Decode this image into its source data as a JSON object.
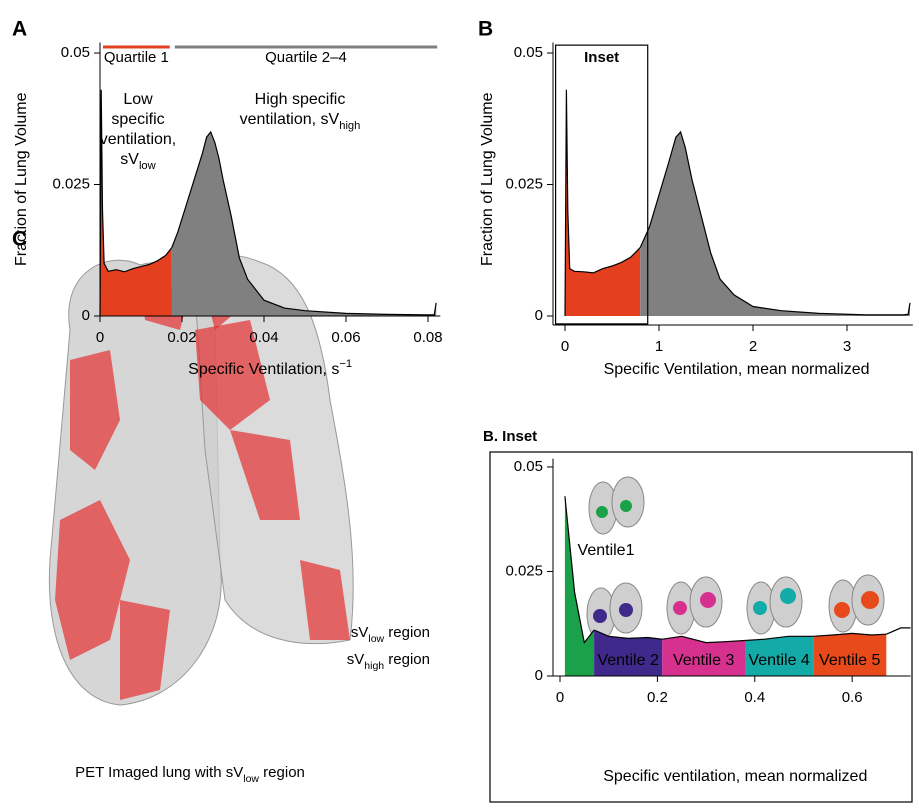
{
  "chart_data": [
    {
      "type": "area",
      "panel": "A",
      "y_label": "Fraction of Lung Volume",
      "x_label": {
        "text": "Specific Ventilation, s",
        "sup": "−1"
      },
      "xlim": [
        0,
        0.083
      ],
      "ylim": [
        0,
        0.052
      ],
      "xticks": [
        0,
        0.02,
        0.04,
        0.06,
        0.08
      ],
      "yticks": [
        0,
        0.025,
        0.05
      ],
      "series": [
        {
          "name": "Quartile 1",
          "color": "#e4401f",
          "x": [
            0,
            0.0003,
            0.0006,
            0.001,
            0.002,
            0.004,
            0.006,
            0.008,
            0.01,
            0.012,
            0.014,
            0.016,
            0.0175
          ],
          "values": [
            0,
            0.043,
            0.02,
            0.01,
            0.0085,
            0.0088,
            0.0084,
            0.009,
            0.0094,
            0.0098,
            0.0105,
            0.0115,
            0.013
          ]
        },
        {
          "name": "Quartile 2–4",
          "color": "#808080",
          "x": [
            0.0175,
            0.019,
            0.021,
            0.023,
            0.025,
            0.026,
            0.027,
            0.028,
            0.029,
            0.03,
            0.032,
            0.034,
            0.036,
            0.038,
            0.04,
            0.045,
            0.05,
            0.06,
            0.07,
            0.08,
            0.0815,
            0.082
          ],
          "values": [
            0.013,
            0.016,
            0.021,
            0.026,
            0.031,
            0.034,
            0.035,
            0.033,
            0.03,
            0.026,
            0.019,
            0.011,
            0.007,
            0.005,
            0.003,
            0.0015,
            0.001,
            0.0005,
            0.0003,
            0.0002,
            0.0002,
            0.0025
          ]
        }
      ],
      "annotations": [
        {
          "lines": [
            "Low",
            "specific",
            "ventilation,"
          ],
          "last": "sV",
          "sub": "low",
          "color": "#e4401f"
        },
        {
          "lines": [
            "High specific"
          ],
          "last": "ventilation, sV",
          "sub": "high",
          "color": "#8c8c8c"
        }
      ]
    },
    {
      "type": "area",
      "panel": "B",
      "y_label": "Fraction of Lung Volume",
      "x_label": {
        "text": "Specific Ventilation, mean normalized"
      },
      "xlim": [
        -0.05,
        3.7
      ],
      "ylim": [
        0,
        0.052
      ],
      "xticks": [
        0,
        1,
        2,
        3
      ],
      "yticks": [
        0,
        0.025,
        0.05
      ],
      "series": [
        {
          "color": "#e4401f",
          "x": [
            0,
            0.015,
            0.03,
            0.05,
            0.1,
            0.2,
            0.3,
            0.4,
            0.5,
            0.6,
            0.7,
            0.8
          ],
          "values": [
            0,
            0.043,
            0.02,
            0.009,
            0.0085,
            0.0084,
            0.0082,
            0.009,
            0.0095,
            0.0102,
            0.0112,
            0.013
          ]
        },
        {
          "color": "#808080",
          "x": [
            0.8,
            0.9,
            1.0,
            1.1,
            1.18,
            1.23,
            1.28,
            1.35,
            1.45,
            1.55,
            1.65,
            1.8,
            2.0,
            2.3,
            2.7,
            3.2,
            3.6,
            3.65,
            3.67
          ],
          "values": [
            0.013,
            0.017,
            0.023,
            0.029,
            0.034,
            0.035,
            0.032,
            0.026,
            0.019,
            0.012,
            0.007,
            0.004,
            0.0018,
            0.001,
            0.0005,
            0.0002,
            0.0002,
            0.0003,
            0.0025
          ]
        }
      ],
      "inset_box": {
        "label": "Inset",
        "xlim": [
          -0.1,
          0.88
        ],
        "ylim": [
          -0.0015,
          0.0515
        ]
      }
    },
    {
      "type": "area",
      "panel": "B. Inset",
      "x_label": {
        "text": "Specific ventilation, mean normalized"
      },
      "xlim": [
        0,
        0.72
      ],
      "ylim": [
        0,
        0.052
      ],
      "xticks": [
        0,
        0.2,
        0.4,
        0.6
      ],
      "yticks": [
        0,
        0.025,
        0.05
      ],
      "series": [
        {
          "name": "Ventile1",
          "color": "#1aa14a",
          "x": [
            0.01,
            0.03,
            0.05,
            0.07
          ],
          "values": [
            0.043,
            0.02,
            0.008,
            0.011
          ]
        },
        {
          "name": "Ventile 2",
          "color": "#3f2a8c",
          "x": [
            0.07,
            0.1,
            0.14,
            0.18,
            0.21
          ],
          "values": [
            0.011,
            0.0095,
            0.009,
            0.0092,
            0.0088
          ]
        },
        {
          "name": "Ventile 3",
          "color": "#d6318f",
          "x": [
            0.21,
            0.25,
            0.3,
            0.34,
            0.38
          ],
          "values": [
            0.0088,
            0.0095,
            0.008,
            0.0082,
            0.0085
          ]
        },
        {
          "name": "Ventile 4",
          "color": "#13aaa8",
          "x": [
            0.38,
            0.42,
            0.47,
            0.52
          ],
          "values": [
            0.0085,
            0.0088,
            0.0095,
            0.0095
          ]
        },
        {
          "name": "Ventile 5",
          "color": "#e84a1b",
          "x": [
            0.52,
            0.56,
            0.6,
            0.64,
            0.67
          ],
          "values": [
            0.0095,
            0.0098,
            0.0102,
            0.0098,
            0.01
          ]
        },
        {
          "x": [
            0.67,
            0.7,
            0.72
          ],
          "values": [
            0.01,
            0.0115,
            0.0115
          ]
        }
      ]
    }
  ],
  "panel_c": {
    "label": "C",
    "legend": [
      {
        "text": "sV",
        "sub": "low",
        "rest": " region",
        "color": "#e4401f"
      },
      {
        "text": "sV",
        "sub": "high",
        "rest": " region",
        "color": "#000000"
      }
    ],
    "caption": {
      "text": "PET Imaged lung with sV",
      "sub": "low",
      "rest": " region"
    }
  }
}
